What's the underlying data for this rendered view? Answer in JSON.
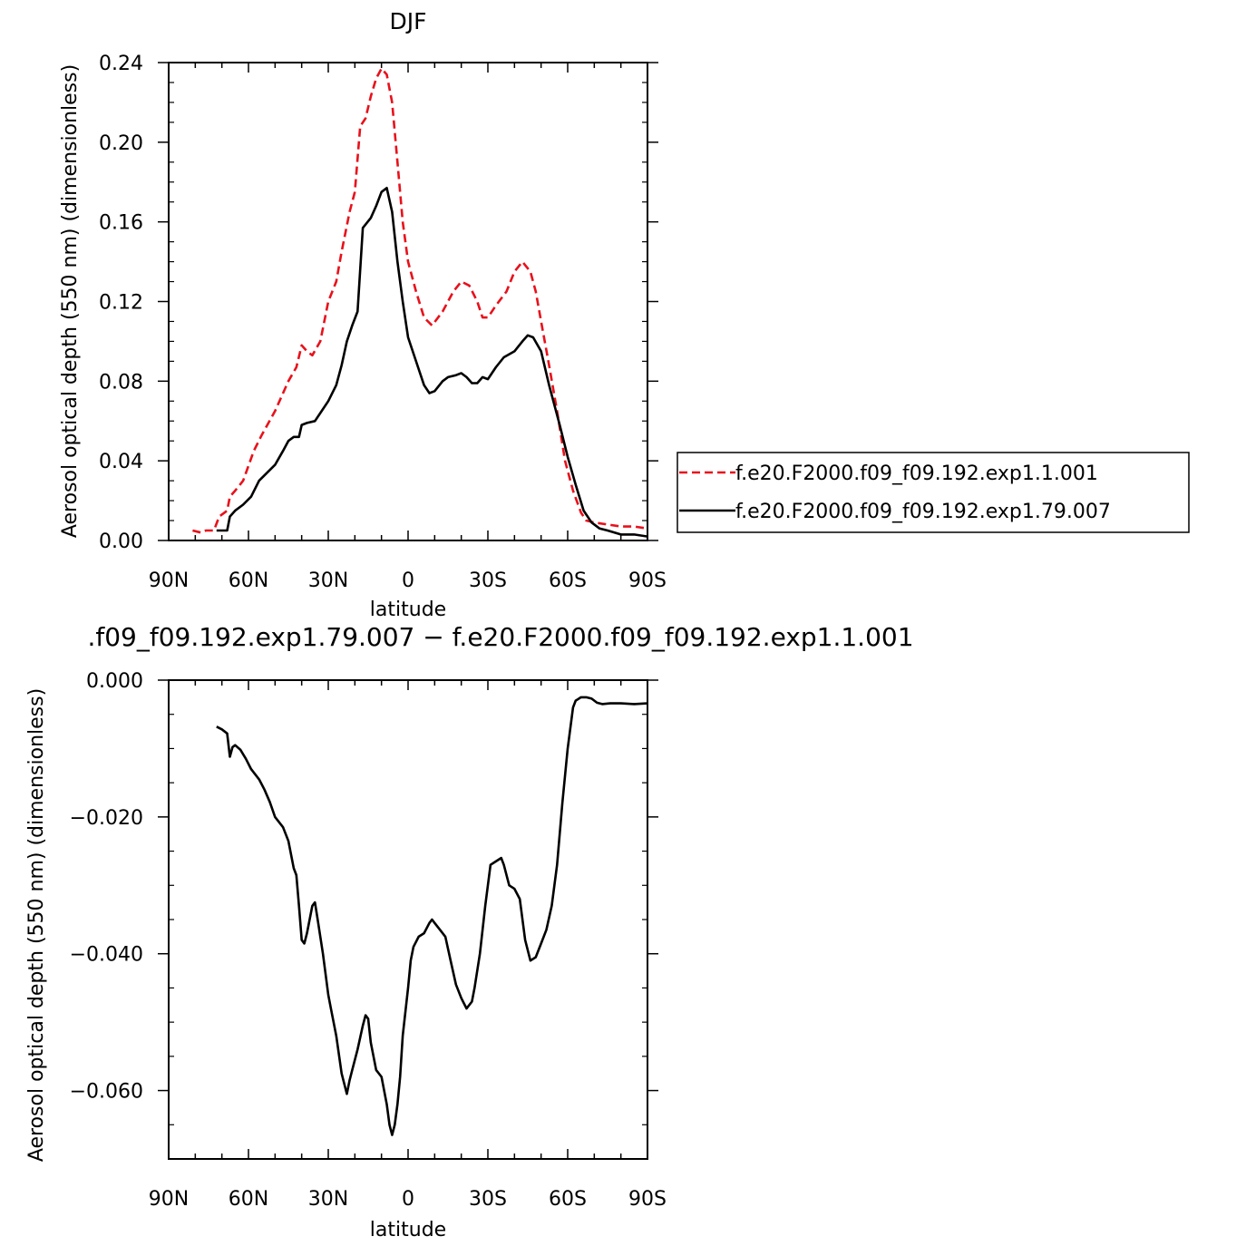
{
  "chart_data": [
    {
      "type": "line",
      "title": "DJF",
      "xlabel": "latitude",
      "ylabel": "Aerosol optical depth (550 nm) (dimensionless)",
      "xlim": [
        90,
        -90
      ],
      "ylim": [
        0,
        0.24
      ],
      "x_ticks": [
        90,
        60,
        30,
        0,
        -30,
        -60,
        -90
      ],
      "x_tick_labels": [
        "90N",
        "60N",
        "30N",
        "0",
        "30S",
        "60S",
        "90S"
      ],
      "y_ticks": [
        0,
        0.04,
        0.08,
        0.12,
        0.16,
        0.2,
        0.24
      ],
      "y_tick_labels": [
        "0.00",
        "0.04",
        "0.08",
        "0.12",
        "0.16",
        "0.20",
        "0.24"
      ],
      "legend_position": "right",
      "series": [
        {
          "name": "f.e20.F2000.f09_f09.192.exp1.1.001",
          "color": "#e8111b",
          "dash": "dashed",
          "x": [
            81,
            78,
            76,
            73,
            71,
            68,
            67,
            65,
            62,
            58,
            55,
            50,
            45,
            42,
            40,
            38,
            36,
            33,
            30,
            27,
            25,
            22,
            20,
            18,
            16,
            14,
            12,
            10,
            8,
            6,
            4,
            2,
            0,
            -3,
            -6,
            -9,
            -13,
            -17,
            -20,
            -23,
            -26,
            -28,
            -30,
            -33,
            -37,
            -40,
            -43,
            -46,
            -48,
            -50,
            -53,
            -56,
            -59,
            -62,
            -65,
            -67,
            -70,
            -75,
            -80,
            -85,
            -90
          ],
          "y": [
            0.005,
            0.004,
            0.005,
            0.005,
            0.012,
            0.015,
            0.022,
            0.025,
            0.03,
            0.045,
            0.053,
            0.065,
            0.08,
            0.087,
            0.098,
            0.095,
            0.093,
            0.1,
            0.12,
            0.13,
            0.145,
            0.165,
            0.175,
            0.208,
            0.212,
            0.223,
            0.232,
            0.237,
            0.234,
            0.22,
            0.19,
            0.16,
            0.14,
            0.125,
            0.112,
            0.108,
            0.115,
            0.125,
            0.13,
            0.128,
            0.12,
            0.112,
            0.112,
            0.118,
            0.125,
            0.135,
            0.14,
            0.135,
            0.125,
            0.11,
            0.088,
            0.065,
            0.04,
            0.025,
            0.014,
            0.01,
            0.009,
            0.008,
            0.007,
            0.007,
            0.006
          ]
        },
        {
          "name": "f.e20.F2000.f09_f09.192.exp1.79.007",
          "color": "#000000",
          "dash": "solid",
          "x": [
            72,
            70,
            68,
            67,
            65,
            62,
            59,
            56,
            53,
            50,
            47,
            45,
            43,
            41,
            40,
            38,
            35,
            33,
            30,
            27,
            25,
            23,
            21,
            19,
            17,
            14,
            12,
            10,
            8,
            6,
            4,
            2,
            0,
            -3,
            -6,
            -8,
            -10,
            -13,
            -15,
            -18,
            -20,
            -22,
            -24,
            -26,
            -28,
            -30,
            -33,
            -36,
            -40,
            -43,
            -45,
            -47,
            -50,
            -53,
            -57,
            -60,
            -63,
            -66,
            -69,
            -72,
            -75,
            -80,
            -85,
            -90
          ],
          "y": [
            0.005,
            0.005,
            0.005,
            0.012,
            0.015,
            0.018,
            0.022,
            0.03,
            0.034,
            0.038,
            0.045,
            0.05,
            0.052,
            0.052,
            0.058,
            0.059,
            0.06,
            0.064,
            0.07,
            0.078,
            0.088,
            0.1,
            0.108,
            0.115,
            0.157,
            0.162,
            0.168,
            0.175,
            0.177,
            0.165,
            0.14,
            0.12,
            0.102,
            0.09,
            0.078,
            0.074,
            0.075,
            0.08,
            0.082,
            0.083,
            0.084,
            0.082,
            0.079,
            0.079,
            0.082,
            0.081,
            0.087,
            0.092,
            0.095,
            0.1,
            0.103,
            0.102,
            0.095,
            0.078,
            0.058,
            0.042,
            0.028,
            0.015,
            0.009,
            0.006,
            0.005,
            0.003,
            0.003,
            0.002
          ]
        }
      ]
    },
    {
      "type": "line",
      "title": ".f09_f09.192.exp1.79.007 − f.e20.F2000.f09_f09.192.exp1.1.001",
      "xlabel": "latitude",
      "ylabel": "Aerosol optical depth (550 nm) (dimensionless)",
      "xlim": [
        90,
        -90
      ],
      "ylim": [
        -0.07,
        0
      ],
      "x_ticks": [
        90,
        60,
        30,
        0,
        -30,
        -60,
        -90
      ],
      "x_tick_labels": [
        "90N",
        "60N",
        "30N",
        "0",
        "30S",
        "60S",
        "90S"
      ],
      "y_ticks": [
        0,
        -0.02,
        -0.04,
        -0.06
      ],
      "y_tick_labels": [
        "0.000",
        "−0.020",
        "−0.040",
        "−0.060"
      ],
      "series": [
        {
          "color": "#000000",
          "dash": "solid",
          "x": [
            72,
            70,
            68,
            67,
            66,
            65,
            63,
            61,
            59,
            56,
            54,
            52,
            50,
            47,
            45,
            43,
            42,
            41,
            40,
            39,
            38,
            36,
            35,
            34,
            32,
            30,
            29,
            27,
            25,
            23,
            22,
            21,
            19,
            17,
            16,
            15,
            14,
            12,
            10,
            8,
            7,
            6,
            5,
            4,
            3,
            2,
            0,
            -1,
            -2,
            -4,
            -6,
            -8,
            -9,
            -10,
            -12,
            -14,
            -16,
            -18,
            -20,
            -22,
            -24,
            -25,
            -27,
            -29,
            -31,
            -33,
            -35,
            -36,
            -38,
            -40,
            -42,
            -44,
            -46,
            -48,
            -50,
            -52,
            -54,
            -56,
            -58,
            -60,
            -62,
            -63,
            -65,
            -67,
            -69,
            -71,
            -73,
            -76,
            -80,
            -85,
            -90
          ],
          "y": [
            -0.0068,
            -0.0072,
            -0.0078,
            -0.0112,
            -0.0098,
            -0.0095,
            -0.0102,
            -0.0115,
            -0.013,
            -0.0145,
            -0.016,
            -0.0178,
            -0.02,
            -0.0215,
            -0.0235,
            -0.0275,
            -0.0285,
            -0.033,
            -0.038,
            -0.0385,
            -0.037,
            -0.033,
            -0.0325,
            -0.035,
            -0.04,
            -0.046,
            -0.048,
            -0.052,
            -0.0575,
            -0.0605,
            -0.0585,
            -0.057,
            -0.054,
            -0.0505,
            -0.049,
            -0.0495,
            -0.053,
            -0.057,
            -0.058,
            -0.062,
            -0.065,
            -0.0665,
            -0.065,
            -0.062,
            -0.058,
            -0.052,
            -0.045,
            -0.041,
            -0.039,
            -0.0375,
            -0.037,
            -0.0355,
            -0.035,
            -0.0355,
            -0.0365,
            -0.0375,
            -0.041,
            -0.0445,
            -0.0465,
            -0.048,
            -0.047,
            -0.045,
            -0.04,
            -0.033,
            -0.027,
            -0.0265,
            -0.026,
            -0.027,
            -0.03,
            -0.0305,
            -0.032,
            -0.038,
            -0.041,
            -0.0405,
            -0.0385,
            -0.0365,
            -0.033,
            -0.027,
            -0.018,
            -0.01,
            -0.004,
            -0.003,
            -0.0025,
            -0.0025,
            -0.0027,
            -0.0033,
            -0.0035,
            -0.0034,
            -0.0034,
            -0.0035,
            -0.0034
          ]
        }
      ]
    }
  ]
}
